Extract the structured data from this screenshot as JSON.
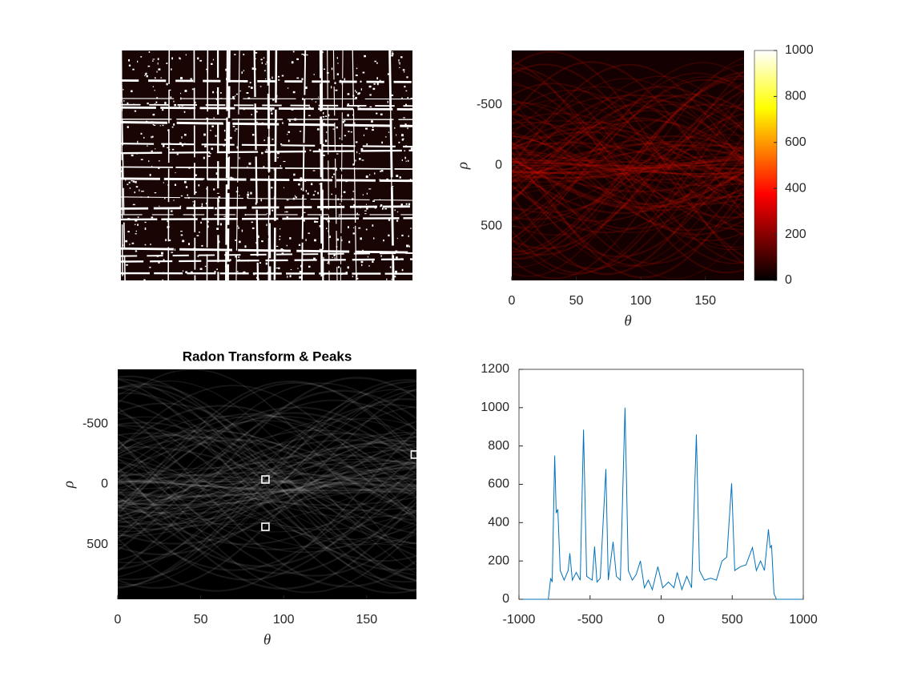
{
  "chart_data": [
    {
      "type": "image"
    },
    {
      "type": "heatmap",
      "colormap": "hot",
      "y_reversed": true,
      "xlim": [
        0,
        180
      ],
      "xticks": [
        0,
        50,
        100,
        150
      ],
      "ylim": [
        -945,
        945
      ],
      "yticks": [
        -500,
        0,
        500
      ],
      "xlabel": "θ",
      "ylabel": "ρ",
      "colorbar": {
        "lim": [
          0,
          1000
        ],
        "ticks": [
          0,
          200,
          400,
          600,
          800,
          1000
        ]
      }
    },
    {
      "type": "heatmap",
      "colormap": "gray",
      "y_reversed": true,
      "title": "Radon Transform & Peaks",
      "xlim": [
        0,
        180
      ],
      "xticks": [
        0,
        50,
        100,
        150
      ],
      "ylim": [
        -955,
        955
      ],
      "yticks": [
        -500,
        0,
        500
      ],
      "xlabel": "θ",
      "ylabel": "ρ",
      "peaks": {
        "color": "#ffffff",
        "x": [
          89,
          89,
          179
        ],
        "y": [
          -40,
          353,
          -247
        ]
      }
    },
    {
      "type": "line",
      "color": "#0072bd",
      "xlim": [
        -1000,
        1000
      ],
      "xticks": [
        -1000,
        -500,
        0,
        500,
        1000
      ],
      "ylim": [
        0,
        1200
      ],
      "yticks": [
        0,
        200,
        400,
        600,
        800,
        1000,
        1200
      ],
      "x": [
        -990,
        -794,
        -777,
        -766,
        -749,
        -738,
        -727,
        -710,
        -682,
        -654,
        -642,
        -625,
        -597,
        -569,
        -546,
        -524,
        -485,
        -468,
        -451,
        -428,
        -389,
        -372,
        -338,
        -315,
        -287,
        -254,
        -231,
        -203,
        -175,
        -146,
        -118,
        -90,
        -62,
        -23,
        11,
        51,
        90,
        113,
        146,
        180,
        214,
        248,
        270,
        304,
        349,
        389,
        428,
        462,
        496,
        518,
        558,
        597,
        642,
        670,
        699,
        727,
        755,
        766,
        777,
        794,
        811,
        990
      ],
      "values": [
        0,
        0,
        110,
        90,
        750,
        450,
        470,
        150,
        100,
        150,
        240,
        100,
        140,
        100,
        885,
        120,
        100,
        275,
        90,
        110,
        680,
        100,
        300,
        120,
        100,
        1000,
        150,
        100,
        130,
        200,
        60,
        100,
        50,
        170,
        60,
        90,
        60,
        140,
        50,
        120,
        60,
        860,
        150,
        100,
        110,
        100,
        200,
        220,
        605,
        150,
        170,
        180,
        270,
        150,
        200,
        150,
        365,
        270,
        280,
        30,
        0,
        0
      ]
    }
  ]
}
